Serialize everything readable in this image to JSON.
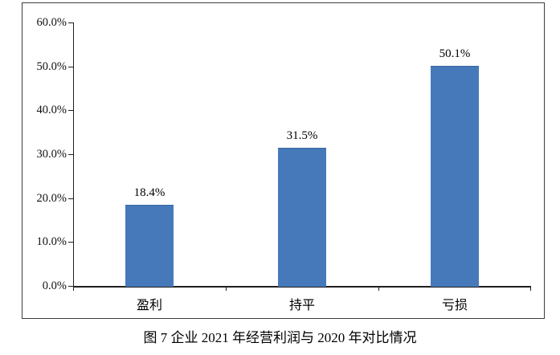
{
  "figure": {
    "caption": "图 7 企业 2021 年经营利润与 2020 年对比情况"
  },
  "chart_data": {
    "type": "bar",
    "categories": [
      "盈利",
      "持平",
      "亏损"
    ],
    "values": [
      18.4,
      31.5,
      50.1
    ],
    "data_labels": [
      "18.4%",
      "31.5%",
      "50.1%"
    ],
    "y_ticks": [
      "60.0%",
      "50.0%",
      "40.0%",
      "30.0%",
      "20.0%",
      "10.0%",
      "0.0%"
    ],
    "ylim": [
      0,
      60
    ],
    "y_tick_step": 10,
    "title": "",
    "xlabel": "",
    "ylabel": "",
    "grid": false,
    "legend": "none",
    "bar_color": "#4679BA"
  }
}
